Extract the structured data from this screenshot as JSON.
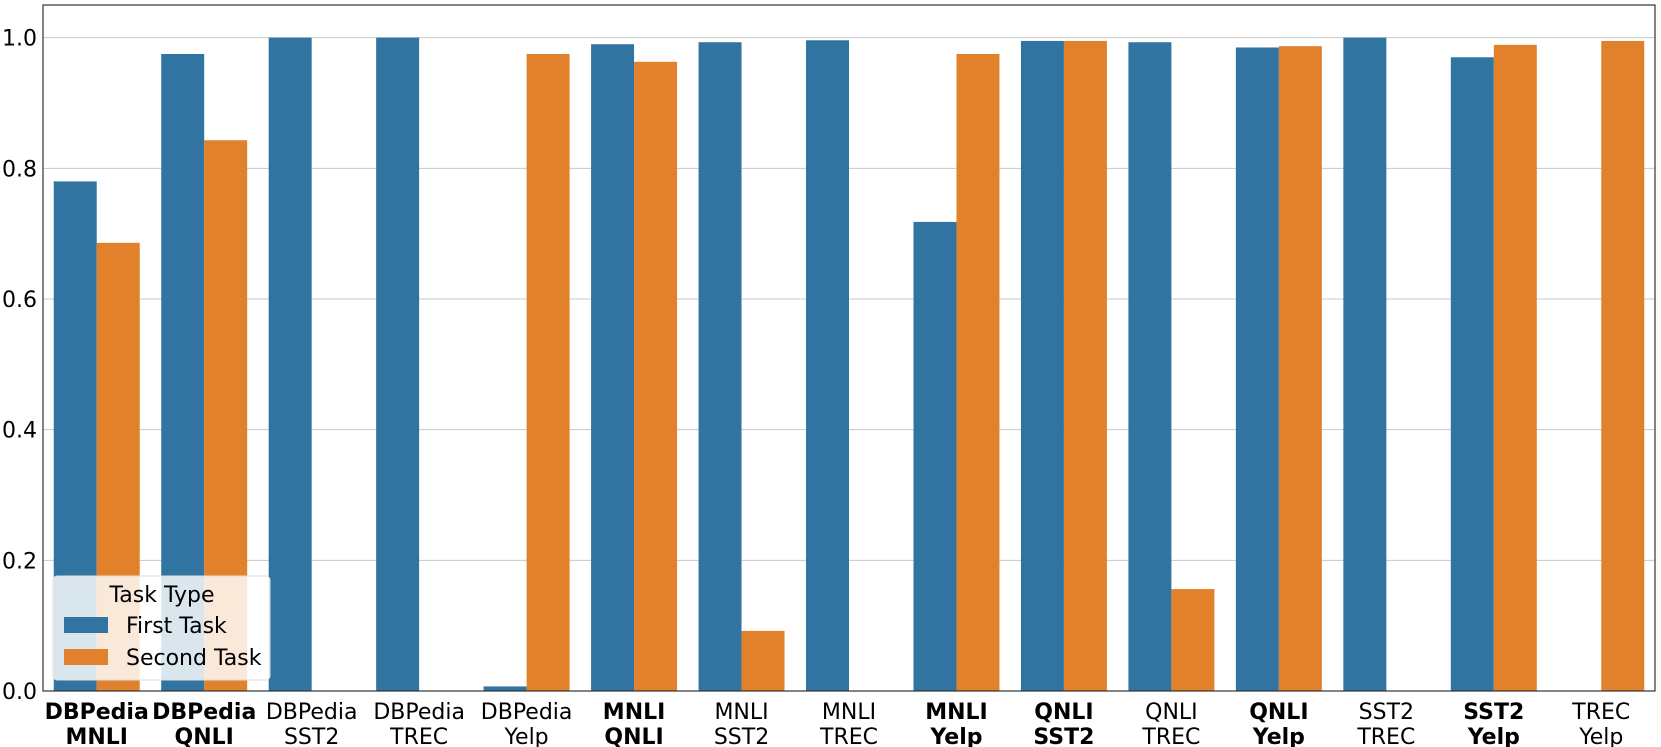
{
  "chart_data": {
    "type": "bar",
    "title": "",
    "xlabel": "",
    "ylabel": "",
    "ylim": [
      0,
      1.05
    ],
    "yticks": [
      "0.0",
      "0.2",
      "0.4",
      "0.6",
      "0.8",
      "1.0"
    ],
    "grid": "horizontal",
    "categories": [
      {
        "line1": "DBPedia",
        "line2": "MNLI",
        "bold": true
      },
      {
        "line1": "DBPedia",
        "line2": "QNLI",
        "bold": true
      },
      {
        "line1": "DBPedia",
        "line2": "SST2",
        "bold": false
      },
      {
        "line1": "DBPedia",
        "line2": "TREC",
        "bold": false
      },
      {
        "line1": "DBPedia",
        "line2": "Yelp",
        "bold": false
      },
      {
        "line1": "MNLI",
        "line2": "QNLI",
        "bold": true
      },
      {
        "line1": "MNLI",
        "line2": "SST2",
        "bold": false
      },
      {
        "line1": "MNLI",
        "line2": "TREC",
        "bold": false
      },
      {
        "line1": "MNLI",
        "line2": "Yelp",
        "bold": true
      },
      {
        "line1": "QNLI",
        "line2": "SST2",
        "bold": true
      },
      {
        "line1": "QNLI",
        "line2": "TREC",
        "bold": false
      },
      {
        "line1": "QNLI",
        "line2": "Yelp",
        "bold": true
      },
      {
        "line1": "SST2",
        "line2": "TREC",
        "bold": false
      },
      {
        "line1": "SST2",
        "line2": "Yelp",
        "bold": true
      },
      {
        "line1": "TREC",
        "line2": "Yelp",
        "bold": false
      }
    ],
    "series": [
      {
        "name": "First Task",
        "color": "#3274a1",
        "values": [
          0.78,
          0.975,
          1.0,
          1.0,
          0.007,
          0.99,
          0.993,
          0.996,
          0.718,
          0.995,
          0.993,
          0.985,
          1.0,
          0.97,
          0.0
        ]
      },
      {
        "name": "Second Task",
        "color": "#e1812c",
        "values": [
          0.686,
          0.843,
          0.0,
          0.0,
          0.975,
          0.963,
          0.092,
          0.0,
          0.975,
          0.995,
          0.156,
          0.987,
          0.0,
          0.989,
          0.995
        ]
      }
    ],
    "legend": {
      "title": "Task Type",
      "placement": "bottom-left"
    }
  }
}
